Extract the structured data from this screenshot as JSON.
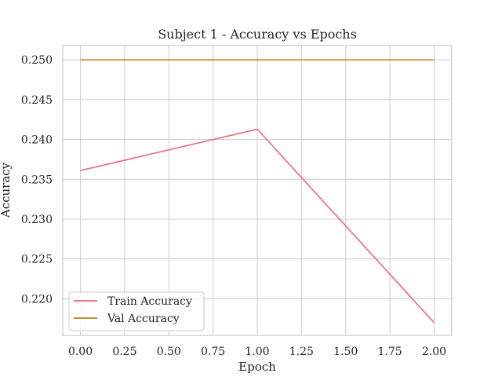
{
  "chart_data": {
    "type": "line",
    "title": "Subject 1 - Accuracy vs Epochs",
    "xlabel": "Epoch",
    "ylabel": "Accuracy",
    "xlim": [
      -0.1,
      2.1
    ],
    "ylim": [
      0.2154,
      0.2518
    ],
    "x_ticks": [
      "0.00",
      "0.25",
      "0.50",
      "0.75",
      "1.00",
      "1.25",
      "1.50",
      "1.75",
      "2.00"
    ],
    "y_ticks": [
      "0.220",
      "0.225",
      "0.230",
      "0.235",
      "0.240",
      "0.245",
      "0.250"
    ],
    "grid": true,
    "legend_position": "lower-left",
    "series": [
      {
        "name": "Train Accuracy",
        "color": "#f07389",
        "x": [
          0,
          1,
          2
        ],
        "y": [
          0.2361,
          0.2413,
          0.217
        ]
      },
      {
        "name": "Val Accuracy",
        "color": "#c0902e",
        "x": [
          0,
          1,
          2
        ],
        "y": [
          0.25,
          0.25,
          0.25
        ]
      }
    ]
  }
}
